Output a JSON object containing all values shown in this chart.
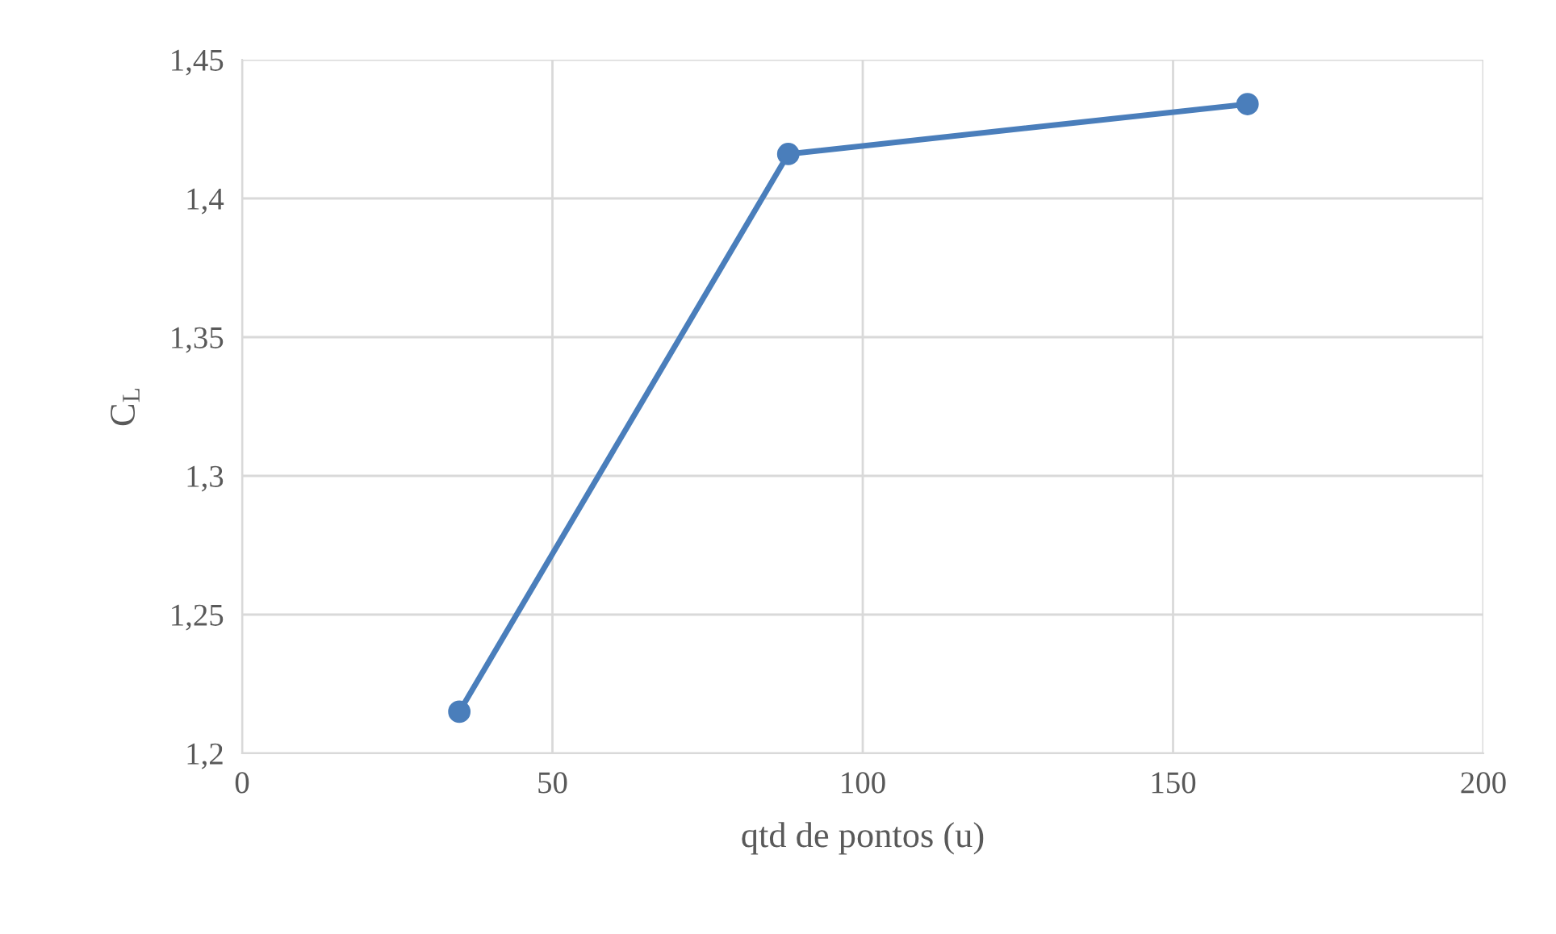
{
  "chart_data": {
    "type": "line",
    "xlabel": "qtd de pontos (u)",
    "ylabel": "C$_{L}$",
    "x": [
      35,
      88,
      162
    ],
    "series": [
      {
        "color": "#4a7ebb",
        "values": [
          1.215,
          1.416,
          1.434
        ]
      }
    ],
    "xlim": [
      0,
      200
    ],
    "xticks": [
      0,
      50,
      100,
      150,
      200
    ],
    "ylim": [
      1.2,
      1.45
    ],
    "yticks": [
      {
        "value": 1.2,
        "label": "1,2"
      },
      {
        "value": 1.25,
        "label": "1,25"
      },
      {
        "value": 1.3,
        "label": "1,3"
      },
      {
        "value": 1.35,
        "label": "1,35"
      },
      {
        "value": 1.4,
        "label": "1,4"
      },
      {
        "value": 1.45,
        "label": "1,45"
      }
    ],
    "grid": true,
    "marker": "circle",
    "line_style": "solid"
  }
}
